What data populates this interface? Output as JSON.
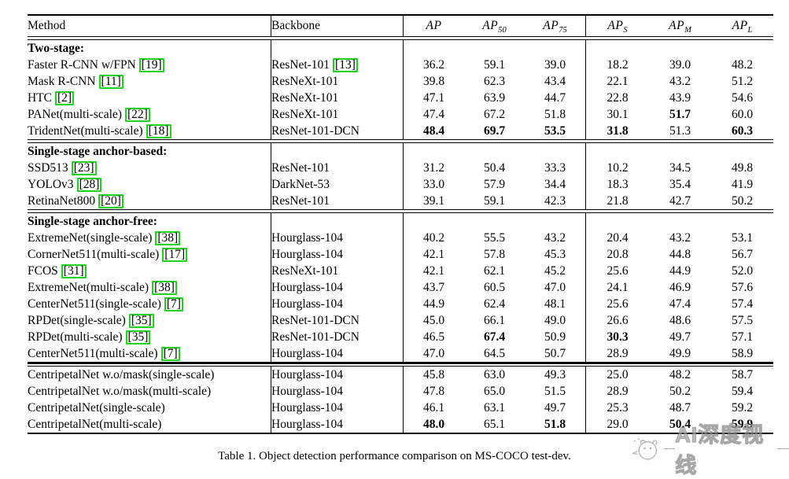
{
  "caption": "Table 1. Object detection performance comparison on MS-COCO test-dev.",
  "watermark": {
    "text": "AI深度视线",
    "icon": "pig-mascot-icon"
  },
  "colors": {
    "citation_box_green": "#1ed31e",
    "rule_black": "#000000",
    "watermark_gray": "#8a8a8a",
    "page_background": "#ffffff"
  },
  "table": {
    "headers": {
      "method": "Method",
      "backbone": "Backbone",
      "metrics": [
        {
          "base": "AP",
          "sub": ""
        },
        {
          "base": "AP",
          "sub": "50"
        },
        {
          "base": "AP",
          "sub": "75"
        },
        {
          "base": "AP",
          "sub": "S"
        },
        {
          "base": "AP",
          "sub": "M"
        },
        {
          "base": "AP",
          "sub": "L"
        }
      ]
    },
    "sections": [
      {
        "label": "Two-stage:",
        "separator_after": "double",
        "rows": [
          {
            "method": "Faster R-CNN w/FPN",
            "cite": "19",
            "backbone": "ResNet-101",
            "backbone_cite": "13",
            "values": [
              "36.2",
              "59.1",
              "39.0",
              "18.2",
              "39.0",
              "48.2"
            ],
            "bold": [
              false,
              false,
              false,
              false,
              false,
              false
            ]
          },
          {
            "method": "Mask R-CNN",
            "cite": "11",
            "backbone": "ResNeXt-101",
            "values": [
              "39.8",
              "62.3",
              "43.4",
              "22.1",
              "43.2",
              "51.2"
            ],
            "bold": [
              false,
              false,
              false,
              false,
              false,
              false
            ]
          },
          {
            "method": "HTC",
            "cite": "2",
            "backbone": "ResNeXt-101",
            "values": [
              "47.1",
              "63.9",
              "44.7",
              "22.8",
              "43.9",
              "54.6"
            ],
            "bold": [
              false,
              false,
              false,
              false,
              false,
              false
            ]
          },
          {
            "method": "PANet(multi-scale)",
            "cite": "22",
            "backbone": "ResNeXt-101",
            "values": [
              "47.4",
              "67.2",
              "51.8",
              "30.1",
              "51.7",
              "60.0"
            ],
            "bold": [
              false,
              false,
              false,
              false,
              true,
              false
            ]
          },
          {
            "method": "TridentNet(multi-scale)",
            "cite": "18",
            "backbone": "ResNet-101-DCN",
            "values": [
              "48.4",
              "69.7",
              "53.5",
              "31.8",
              "51.3",
              "60.3"
            ],
            "bold": [
              true,
              true,
              true,
              true,
              false,
              true
            ]
          }
        ]
      },
      {
        "label": "Single-stage anchor-based:",
        "separator_after": "double",
        "rows": [
          {
            "method": "SSD513",
            "cite": "23",
            "backbone": "ResNet-101",
            "values": [
              "31.2",
              "50.4",
              "33.3",
              "10.2",
              "34.5",
              "49.8"
            ],
            "bold": [
              false,
              false,
              false,
              false,
              false,
              false
            ]
          },
          {
            "method": "YOLOv3",
            "cite": "28",
            "backbone": "DarkNet-53",
            "values": [
              "33.0",
              "57.9",
              "34.4",
              "18.3",
              "35.4",
              "41.9"
            ],
            "bold": [
              false,
              false,
              false,
              false,
              false,
              false
            ]
          },
          {
            "method": "RetinaNet800",
            "cite": "20",
            "backbone": "ResNet-101",
            "values": [
              "39.1",
              "59.1",
              "42.3",
              "21.8",
              "42.7",
              "50.2"
            ],
            "bold": [
              false,
              false,
              false,
              false,
              false,
              false
            ]
          }
        ]
      },
      {
        "label": "Single-stage anchor-free:",
        "separator_after": "thick",
        "rows": [
          {
            "method": "ExtremeNet(single-scale)",
            "cite": "38",
            "backbone": "Hourglass-104",
            "values": [
              "40.2",
              "55.5",
              "43.2",
              "20.4",
              "43.2",
              "53.1"
            ],
            "bold": [
              false,
              false,
              false,
              false,
              false,
              false
            ]
          },
          {
            "method": "CornerNet511(multi-scale)",
            "cite": "17",
            "backbone": "Hourglass-104",
            "values": [
              "42.1",
              "57.8",
              "45.3",
              "20.8",
              "44.8",
              "56.7"
            ],
            "bold": [
              false,
              false,
              false,
              false,
              false,
              false
            ]
          },
          {
            "method": "FCOS",
            "cite": "31",
            "backbone": "ResNeXt-101",
            "values": [
              "42.1",
              "62.1",
              "45.2",
              "25.6",
              "44.9",
              "52.0"
            ],
            "bold": [
              false,
              false,
              false,
              false,
              false,
              false
            ]
          },
          {
            "method": "ExtremeNet(multi-scale)",
            "cite": "38",
            "backbone": "Hourglass-104",
            "values": [
              "43.7",
              "60.5",
              "47.0",
              "24.1",
              "46.9",
              "57.6"
            ],
            "bold": [
              false,
              false,
              false,
              false,
              false,
              false
            ]
          },
          {
            "method": "CenterNet511(single-scale)",
            "cite": "7",
            "backbone": "Hourglass-104",
            "values": [
              "44.9",
              "62.4",
              "48.1",
              "25.6",
              "47.4",
              "57.4"
            ],
            "bold": [
              false,
              false,
              false,
              false,
              false,
              false
            ]
          },
          {
            "method": "RPDet(single-scale)",
            "cite": "35",
            "backbone": "ResNet-101-DCN",
            "values": [
              "45.0",
              "66.1",
              "49.0",
              "26.6",
              "48.6",
              "57.5"
            ],
            "bold": [
              false,
              false,
              false,
              false,
              false,
              false
            ]
          },
          {
            "method": "RPDet(multi-scale)",
            "cite": "35",
            "backbone": "ResNet-101-DCN",
            "values": [
              "46.5",
              "67.4",
              "50.9",
              "30.3",
              "49.7",
              "57.1"
            ],
            "bold": [
              false,
              true,
              false,
              true,
              false,
              false
            ]
          },
          {
            "method": "CenterNet511(multi-scale)",
            "cite": "7",
            "backbone": "Hourglass-104",
            "values": [
              "47.0",
              "64.5",
              "50.7",
              "28.9",
              "49.9",
              "58.9"
            ],
            "bold": [
              false,
              false,
              false,
              false,
              false,
              false
            ]
          }
        ]
      },
      {
        "label": "",
        "separator_after": "none",
        "rows": [
          {
            "method": "CentripetalNet w.o/mask(single-scale)",
            "backbone": "Hourglass-104",
            "values": [
              "45.8",
              "63.0",
              "49.3",
              "25.0",
              "48.2",
              "58.7"
            ],
            "bold": [
              false,
              false,
              false,
              false,
              false,
              false
            ]
          },
          {
            "method": "CentripetalNet w.o/mask(multi-scale)",
            "backbone": "Hourglass-104",
            "values": [
              "47.8",
              "65.0",
              "51.5",
              "28.9",
              "50.2",
              "59.4"
            ],
            "bold": [
              false,
              false,
              false,
              false,
              false,
              false
            ]
          },
          {
            "method": "CentripetalNet(single-scale)",
            "backbone": "Hourglass-104",
            "values": [
              "46.1",
              "63.1",
              "49.7",
              "25.3",
              "48.7",
              "59.2"
            ],
            "bold": [
              false,
              false,
              false,
              false,
              false,
              false
            ]
          },
          {
            "method": "CentripetalNet(multi-scale)",
            "backbone": "Hourglass-104",
            "values": [
              "48.0",
              "65.1",
              "51.8",
              "29.0",
              "50.4",
              "59.9"
            ],
            "bold": [
              true,
              false,
              true,
              false,
              true,
              true
            ]
          }
        ]
      }
    ]
  }
}
